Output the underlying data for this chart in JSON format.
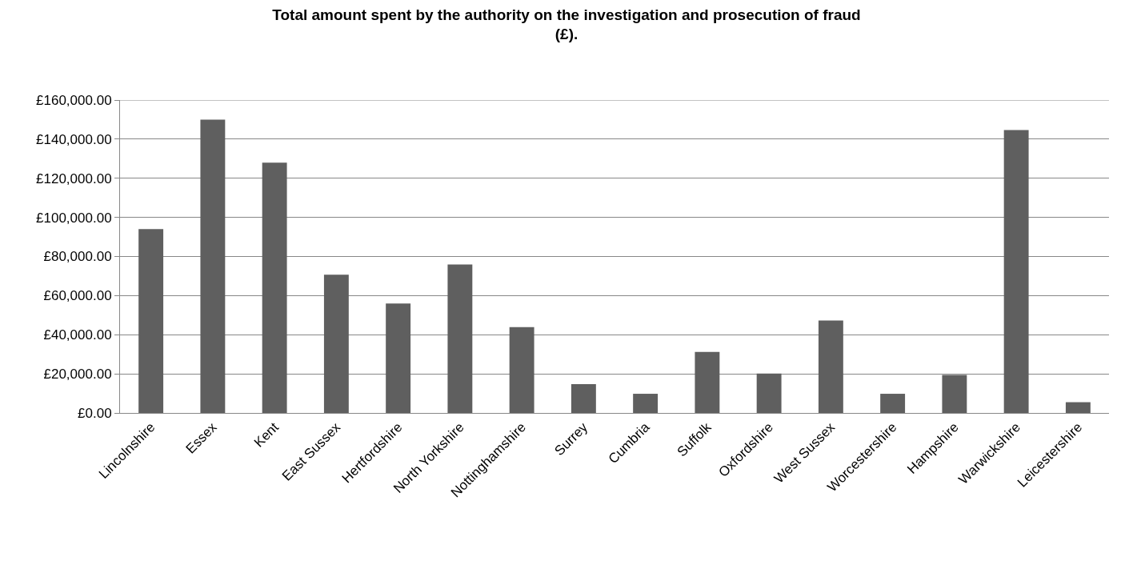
{
  "chart_data": {
    "type": "bar",
    "title": "Total amount spent by the authority on the investigation and prosecution of fraud\n(£).",
    "categories": [
      "Lincolnshire",
      "Essex",
      "Kent",
      "East Sussex",
      "Hertfordshire",
      "North Yorkshire",
      "Nottinghamshire",
      "Surrey",
      "Cumbria",
      "Suffolk",
      "Oxfordshire",
      "West Sussex",
      "Worcestershire",
      "Hampshire",
      "Warwickshire",
      "Leicestershire"
    ],
    "values": [
      94000,
      150000,
      128000,
      70700,
      56000,
      75900,
      43900,
      14700,
      9800,
      31200,
      20200,
      47300,
      9800,
      19400,
      144700,
      5500
    ],
    "color": "#5f5f5f",
    "ylim": [
      0,
      160000
    ],
    "yticks": [
      {
        "value": 0,
        "label": "£0.00"
      },
      {
        "value": 20000,
        "label": "£20,000.00"
      },
      {
        "value": 40000,
        "label": "£40,000.00"
      },
      {
        "value": 60000,
        "label": "£60,000.00"
      },
      {
        "value": 80000,
        "label": "£80,000.00"
      },
      {
        "value": 100000,
        "label": "£100,000.00"
      },
      {
        "value": 120000,
        "label": "£120,000.00"
      },
      {
        "value": 140000,
        "label": "£140,000.00"
      },
      {
        "value": 160000,
        "label": "£160,000.00"
      }
    ],
    "grid": "y"
  }
}
